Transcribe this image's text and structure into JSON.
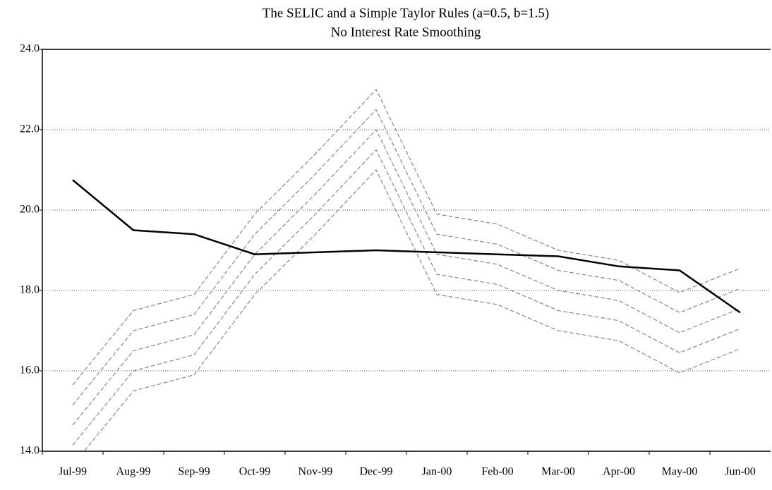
{
  "chart_data": {
    "type": "line",
    "title": "The SELIC and a Simple Taylor Rules (a=0.5, b=1.5)",
    "subtitle": "No Interest Rate Smoothing",
    "categories": [
      "Jul-99",
      "Aug-99",
      "Sep-99",
      "Oct-99",
      "Nov-99",
      "Dec-99",
      "Jan-00",
      "Feb-00",
      "Mar-00",
      "Apr-00",
      "May-00",
      "Jun-00"
    ],
    "series": [
      {
        "color": "#888888",
        "dashed": true,
        "values": [
          15.65,
          17.5,
          17.9,
          19.9,
          21.4,
          23.0,
          19.9,
          19.65,
          19.0,
          18.75,
          17.95,
          18.55
        ]
      },
      {
        "color": "#888888",
        "dashed": true,
        "values": [
          15.15,
          17.0,
          17.4,
          19.4,
          20.9,
          22.5,
          19.4,
          19.15,
          18.5,
          18.25,
          17.45,
          18.05
        ]
      },
      {
        "color": "#888888",
        "dashed": true,
        "values": [
          14.65,
          16.5,
          16.9,
          18.9,
          20.4,
          22.0,
          18.9,
          18.65,
          18.0,
          17.75,
          16.95,
          17.55
        ]
      },
      {
        "color": "#888888",
        "dashed": true,
        "values": [
          14.15,
          16.0,
          16.4,
          18.4,
          19.9,
          21.5,
          18.4,
          18.15,
          17.5,
          17.25,
          16.45,
          17.05
        ]
      },
      {
        "color": "#888888",
        "dashed": true,
        "values": [
          13.65,
          15.5,
          15.9,
          17.9,
          19.4,
          21.0,
          17.9,
          17.65,
          17.0,
          16.75,
          15.95,
          16.55
        ]
      },
      {
        "color": "#000000",
        "dashed": false,
        "values": [
          20.75,
          19.5,
          19.4,
          18.9,
          18.95,
          19.0,
          18.95,
          18.9,
          18.85,
          18.6,
          18.5,
          17.45
        ]
      }
    ],
    "ylim": [
      14,
      24
    ],
    "yticks": [
      {
        "value": 14,
        "label": "14.0"
      },
      {
        "value": 16,
        "label": "16.0"
      },
      {
        "value": 18,
        "label": "18.0"
      },
      {
        "value": 20,
        "label": "20.0"
      },
      {
        "value": 22,
        "label": "22.0"
      },
      {
        "value": 24,
        "label": "24.0"
      }
    ],
    "grid": true
  }
}
